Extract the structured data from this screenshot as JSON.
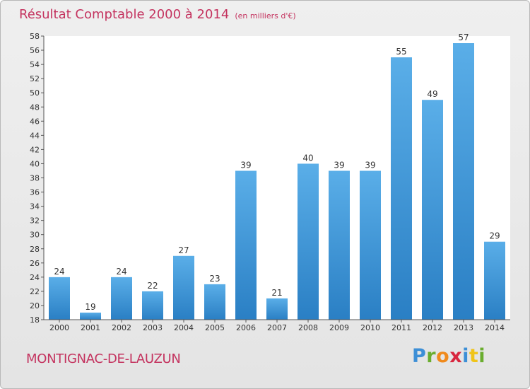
{
  "title": "Résultat Comptable 2000 à 2014",
  "subtitle": "(en milliers d'€)",
  "commune": "MONTIGNAC-DE-LAUZUN",
  "logo": {
    "letters": [
      "P",
      "r",
      "o",
      "x",
      "i",
      "t",
      "i"
    ],
    "colors": [
      "#3d8fd6",
      "#6aad2e",
      "#f08a1c",
      "#d8263e",
      "#3d8fd6",
      "#f0c419",
      "#6aad2e"
    ]
  },
  "colors": {
    "bar_light": "#5aaee8",
    "bar_dark": "#2a7fc4",
    "title": "#c4335f"
  },
  "chart_data": {
    "type": "bar",
    "title": "Résultat Comptable 2000 à 2014",
    "ylabel": "en milliers d'€",
    "categories": [
      "2000",
      "2001",
      "2002",
      "2003",
      "2004",
      "2005",
      "2006",
      "2007",
      "2008",
      "2009",
      "2010",
      "2011",
      "2012",
      "2013",
      "2014"
    ],
    "values": [
      24,
      19,
      24,
      22,
      27,
      23,
      39,
      21,
      40,
      39,
      39,
      55,
      49,
      57,
      29
    ],
    "ylim": [
      18,
      58
    ],
    "yticks": [
      18,
      20,
      22,
      24,
      26,
      28,
      30,
      32,
      34,
      36,
      38,
      40,
      42,
      44,
      46,
      48,
      50,
      52,
      54,
      56,
      58
    ],
    "grid": false
  }
}
